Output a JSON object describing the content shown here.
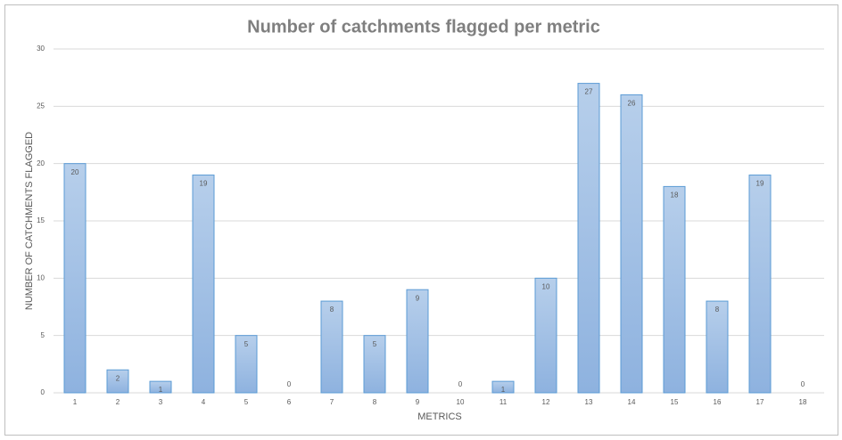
{
  "chart_data": {
    "type": "bar",
    "title": "Number of catchments flagged per metric",
    "x_label": "METRICS",
    "y_label": "NUMBER OF CATCHMENTS FLAGGED",
    "categories": [
      "1",
      "2",
      "3",
      "4",
      "5",
      "6",
      "7",
      "8",
      "9",
      "10",
      "11",
      "12",
      "13",
      "14",
      "15",
      "16",
      "17",
      "18"
    ],
    "values": [
      20,
      2,
      1,
      19,
      5,
      0,
      8,
      5,
      9,
      0,
      1,
      10,
      27,
      26,
      18,
      8,
      19,
      0
    ],
    "color": "#a3c1e6",
    "ylim": [
      0,
      30
    ],
    "yticks": [
      0,
      5,
      10,
      15,
      20,
      25,
      30
    ],
    "grid": true
  }
}
